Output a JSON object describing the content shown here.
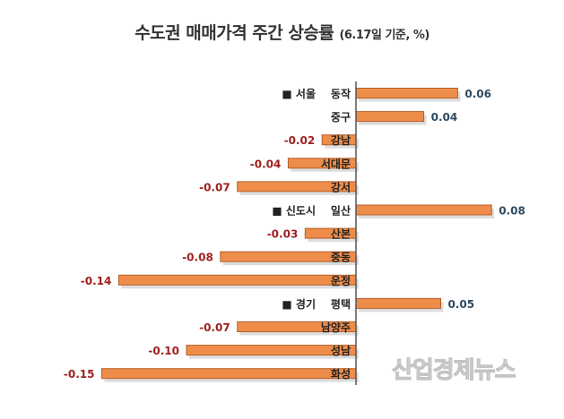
{
  "chart_data": {
    "type": "bar",
    "orientation": "horizontal",
    "title": "수도권 매매가격 주간 상승률",
    "subtitle": "(6.17일 기준, %)",
    "groups": [
      {
        "label": "■ 서울",
        "start_index": 0
      },
      {
        "label": "■ 신도시",
        "start_index": 5
      },
      {
        "label": "■ 경기",
        "start_index": 9
      }
    ],
    "categories": [
      "동작",
      "중구",
      "강남",
      "서대문",
      "강서",
      "일산",
      "산본",
      "중동",
      "운정",
      "평택",
      "남양주",
      "성남",
      "화성"
    ],
    "values": [
      0.06,
      0.04,
      -0.02,
      -0.04,
      -0.07,
      0.08,
      -0.03,
      -0.08,
      -0.14,
      0.05,
      -0.07,
      -0.1,
      -0.15
    ],
    "value_labels": [
      "0.06",
      "0.04",
      "-0.02",
      "-0.04",
      "-0.07",
      "0.08",
      "-0.03",
      "-0.08",
      "-0.14",
      "0.05",
      "-0.07",
      "-0.10",
      "-0.15"
    ],
    "xlim": [
      -0.15,
      0.08
    ],
    "grid": false,
    "colors": {
      "bar": "#ee8d4a",
      "bar_border": "#b5602a",
      "positive_label": "#2e4a62",
      "negative_label": "#a02020",
      "axis": "#555555"
    }
  },
  "watermark": "산업경제뉴스"
}
